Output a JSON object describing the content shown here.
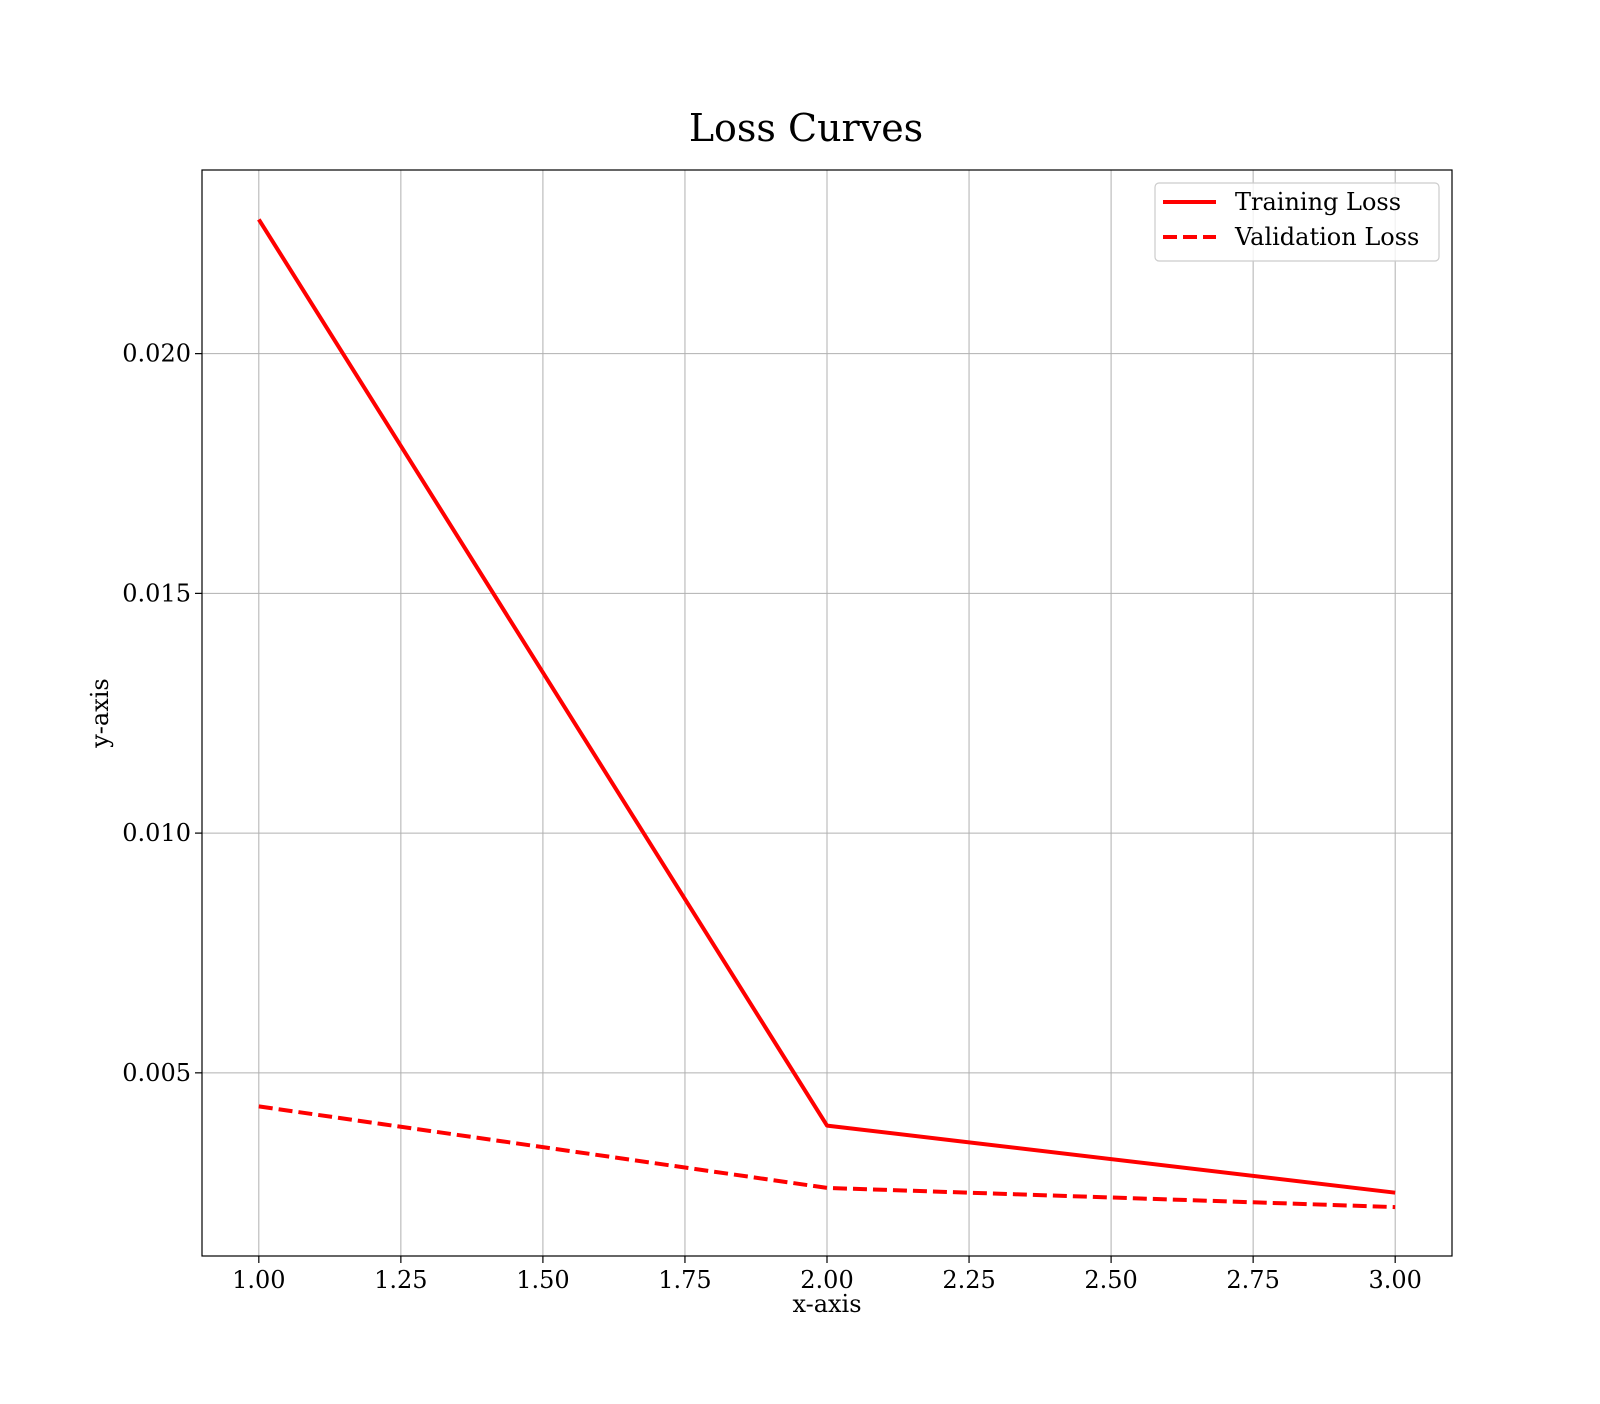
{
  "chart_data": {
    "type": "line",
    "title": "Loss Curves",
    "xlabel": "x-axis",
    "ylabel": "y-axis",
    "x": [
      1,
      2,
      3
    ],
    "series": [
      {
        "name": "Training Loss",
        "values": [
          0.0228,
          0.0039,
          0.0025
        ],
        "color": "#ff0000",
        "style": "solid"
      },
      {
        "name": "Validation Loss",
        "values": [
          0.0043,
          0.0026,
          0.0022
        ],
        "color": "#ff0000",
        "style": "dashed"
      }
    ],
    "xlim": [
      0.9,
      3.1
    ],
    "ylim": [
      0.00118,
      0.02383
    ],
    "xticks": [
      "1.00",
      "1.25",
      "1.50",
      "1.75",
      "2.00",
      "2.25",
      "2.50",
      "2.75",
      "3.00"
    ],
    "yticks": [
      "0.005",
      "0.010",
      "0.015",
      "0.020"
    ],
    "grid": true,
    "legend_position": "top-right"
  }
}
